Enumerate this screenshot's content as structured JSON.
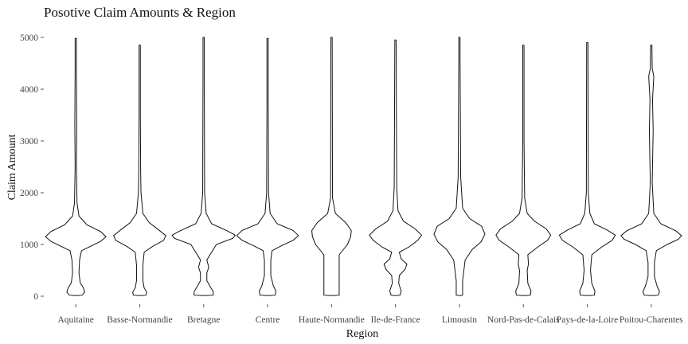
{
  "chart_data": {
    "type": "violin",
    "title": "Posotive Claim Amounts & Region",
    "xlabel": "Region",
    "ylabel": "Claim Amount",
    "ylim": [
      0,
      5000
    ],
    "yticks": [
      0,
      1000,
      2000,
      3000,
      4000,
      5000
    ],
    "grid": false,
    "legend": "none",
    "categories": [
      "Aquitaine",
      "Basse-Normandie",
      "Bretagne",
      "Centre",
      "Haute-Normandie",
      "Ile-de-France",
      "Limousin",
      "Nord-Pas-de-Calais",
      "Pays-de-la-Loire",
      "Poitou-Charentes"
    ],
    "series": [
      {
        "max": 4980,
        "profile": [
          [
            20,
            0.2
          ],
          [
            80,
            0.28
          ],
          [
            160,
            0.24
          ],
          [
            260,
            0.14
          ],
          [
            450,
            0.1
          ],
          [
            700,
            0.12
          ],
          [
            880,
            0.18
          ],
          [
            960,
            0.45
          ],
          [
            1060,
            0.78
          ],
          [
            1150,
            0.95
          ],
          [
            1250,
            0.78
          ],
          [
            1380,
            0.35
          ],
          [
            1550,
            0.1
          ],
          [
            1800,
            0.04
          ],
          [
            2500,
            0.02
          ],
          [
            3300,
            0.03
          ],
          [
            4400,
            0.02
          ],
          [
            4980,
            0.0
          ]
        ]
      },
      {
        "max": 4850,
        "profile": [
          [
            20,
            0.2
          ],
          [
            80,
            0.22
          ],
          [
            160,
            0.14
          ],
          [
            300,
            0.1
          ],
          [
            600,
            0.1
          ],
          [
            850,
            0.14
          ],
          [
            960,
            0.4
          ],
          [
            1080,
            0.75
          ],
          [
            1170,
            0.82
          ],
          [
            1280,
            0.6
          ],
          [
            1420,
            0.3
          ],
          [
            1600,
            0.1
          ],
          [
            2000,
            0.04
          ],
          [
            2400,
            0.03
          ],
          [
            3500,
            0.02
          ],
          [
            4850,
            0.0
          ]
        ]
      },
      {
        "max": 5000,
        "profile": [
          [
            20,
            0.3
          ],
          [
            90,
            0.3
          ],
          [
            170,
            0.22
          ],
          [
            300,
            0.1
          ],
          [
            450,
            0.1
          ],
          [
            560,
            0.16
          ],
          [
            700,
            0.1
          ],
          [
            1000,
            0.4
          ],
          [
            1120,
            0.92
          ],
          [
            1180,
            0.99
          ],
          [
            1260,
            0.75
          ],
          [
            1400,
            0.25
          ],
          [
            1600,
            0.08
          ],
          [
            2000,
            0.03
          ],
          [
            4200,
            0.02
          ],
          [
            5000,
            0.0
          ]
        ]
      },
      {
        "max": 4980,
        "profile": [
          [
            20,
            0.24
          ],
          [
            100,
            0.26
          ],
          [
            200,
            0.18
          ],
          [
            400,
            0.1
          ],
          [
            700,
            0.1
          ],
          [
            880,
            0.14
          ],
          [
            980,
            0.45
          ],
          [
            1080,
            0.8
          ],
          [
            1170,
            0.97
          ],
          [
            1270,
            0.8
          ],
          [
            1400,
            0.3
          ],
          [
            1600,
            0.08
          ],
          [
            2000,
            0.03
          ],
          [
            3800,
            0.02
          ],
          [
            4980,
            0.0
          ]
        ]
      },
      {
        "max": 5000,
        "profile": [
          [
            20,
            0.24
          ],
          [
            200,
            0.24
          ],
          [
            500,
            0.24
          ],
          [
            800,
            0.24
          ],
          [
            1000,
            0.5
          ],
          [
            1150,
            0.6
          ],
          [
            1270,
            0.62
          ],
          [
            1420,
            0.45
          ],
          [
            1600,
            0.12
          ],
          [
            1900,
            0.03
          ],
          [
            5000,
            0.02
          ]
        ]
      },
      {
        "max": 4950,
        "profile": [
          [
            20,
            0.14
          ],
          [
            100,
            0.18
          ],
          [
            250,
            0.1
          ],
          [
            400,
            0.12
          ],
          [
            520,
            0.3
          ],
          [
            620,
            0.36
          ],
          [
            720,
            0.18
          ],
          [
            850,
            0.12
          ],
          [
            950,
            0.42
          ],
          [
            1080,
            0.7
          ],
          [
            1180,
            0.82
          ],
          [
            1300,
            0.62
          ],
          [
            1450,
            0.25
          ],
          [
            1650,
            0.08
          ],
          [
            2100,
            0.04
          ],
          [
            3400,
            0.03
          ],
          [
            4950,
            0.0
          ]
        ]
      },
      {
        "max": 5000,
        "profile": [
          [
            20,
            0.1
          ],
          [
            100,
            0.1
          ],
          [
            300,
            0.1
          ],
          [
            500,
            0.14
          ],
          [
            700,
            0.18
          ],
          [
            900,
            0.4
          ],
          [
            1050,
            0.68
          ],
          [
            1200,
            0.8
          ],
          [
            1350,
            0.7
          ],
          [
            1500,
            0.32
          ],
          [
            1700,
            0.1
          ],
          [
            2300,
            0.04
          ],
          [
            4600,
            0.02
          ],
          [
            5000,
            0.02
          ]
        ]
      },
      {
        "max": 4850,
        "profile": [
          [
            20,
            0.22
          ],
          [
            100,
            0.24
          ],
          [
            250,
            0.14
          ],
          [
            500,
            0.12
          ],
          [
            620,
            0.16
          ],
          [
            800,
            0.14
          ],
          [
            950,
            0.45
          ],
          [
            1080,
            0.76
          ],
          [
            1180,
            0.86
          ],
          [
            1300,
            0.72
          ],
          [
            1450,
            0.35
          ],
          [
            1600,
            0.12
          ],
          [
            1900,
            0.04
          ],
          [
            3000,
            0.02
          ],
          [
            4850,
            0.0
          ]
        ]
      },
      {
        "max": 4900,
        "profile": [
          [
            20,
            0.22
          ],
          [
            100,
            0.24
          ],
          [
            250,
            0.14
          ],
          [
            500,
            0.1
          ],
          [
            800,
            0.14
          ],
          [
            950,
            0.45
          ],
          [
            1080,
            0.78
          ],
          [
            1180,
            0.88
          ],
          [
            1280,
            0.62
          ],
          [
            1400,
            0.22
          ],
          [
            1600,
            0.08
          ],
          [
            2000,
            0.03
          ],
          [
            4900,
            0.0
          ]
        ]
      },
      {
        "max": 4850,
        "profile": [
          [
            20,
            0.22
          ],
          [
            90,
            0.26
          ],
          [
            200,
            0.18
          ],
          [
            380,
            0.1
          ],
          [
            650,
            0.1
          ],
          [
            880,
            0.16
          ],
          [
            1000,
            0.5
          ],
          [
            1100,
            0.85
          ],
          [
            1170,
            0.95
          ],
          [
            1260,
            0.78
          ],
          [
            1400,
            0.3
          ],
          [
            1600,
            0.08
          ],
          [
            2200,
            0.03
          ],
          [
            3200,
            0.06
          ],
          [
            3800,
            0.04
          ],
          [
            4250,
            0.08
          ],
          [
            4400,
            0.03
          ],
          [
            4850,
            0.0
          ]
        ]
      }
    ]
  }
}
